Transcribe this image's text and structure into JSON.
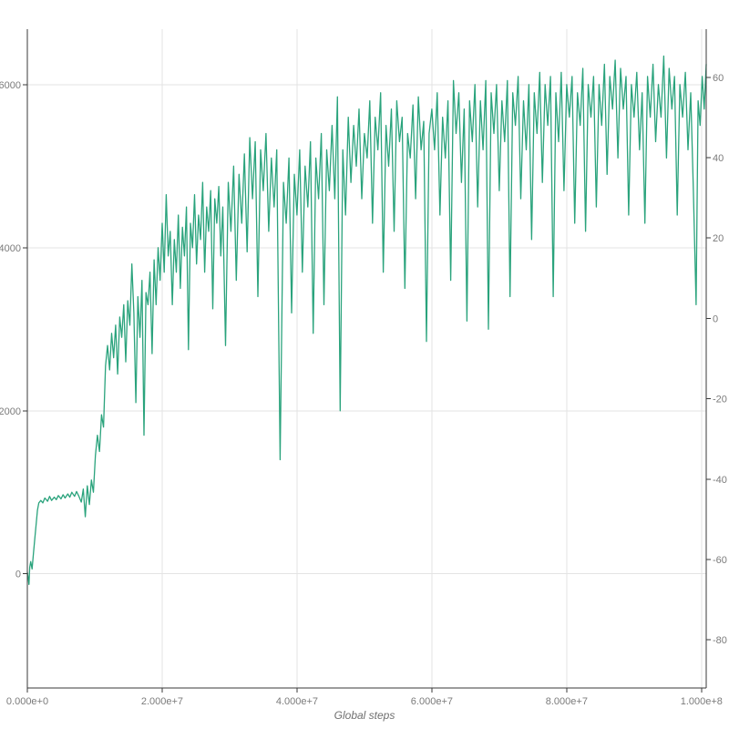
{
  "chart_data": {
    "type": "line",
    "title": "",
    "xlabel": "Global steps",
    "ylabel": "",
    "x_unit": "steps (x values stored in millions of steps)",
    "xlim_millions": [
      0,
      100.7
    ],
    "ylim_left": [
      -1400,
      6680
    ],
    "ylim_right": [
      -92,
      72
    ],
    "grid": true,
    "legend": "none",
    "colors": {
      "line": "#2aa37c",
      "grid": "#e3e3e3",
      "axis": "#3a3a3a",
      "tick_label": "#7b7b7b",
      "axis_title": "#6f6f6f",
      "background": "#ffffff"
    },
    "x_ticks": [
      {
        "v": 0,
        "label": "0.000e+0"
      },
      {
        "v": 20,
        "label": "2.000e+7"
      },
      {
        "v": 40,
        "label": "4.000e+7"
      },
      {
        "v": 60,
        "label": "6.000e+7"
      },
      {
        "v": 80,
        "label": "8.000e+7"
      },
      {
        "v": 100,
        "label": "1.000e+8"
      }
    ],
    "y_ticks_left": [
      {
        "v": 0,
        "label": "0"
      },
      {
        "v": 2000,
        "label": "2000"
      },
      {
        "v": 4000,
        "label": "4000"
      },
      {
        "v": 6000,
        "label": "6000"
      }
    ],
    "y_ticks_right": [
      {
        "v": 60,
        "label": "60"
      },
      {
        "v": 40,
        "label": "40"
      },
      {
        "v": 20,
        "label": "20"
      },
      {
        "v": 0,
        "label": "0"
      },
      {
        "v": -20,
        "label": "-20"
      },
      {
        "v": -40,
        "label": "-40"
      },
      {
        "v": -60,
        "label": "-60"
      },
      {
        "v": -80,
        "label": "-80"
      }
    ],
    "series": [
      {
        "name": "value",
        "axis": "left",
        "points": [
          [
            0,
            20
          ],
          [
            0.15,
            -60
          ],
          [
            0.25,
            -130
          ],
          [
            0.35,
            80
          ],
          [
            0.5,
            150
          ],
          [
            0.7,
            60
          ],
          [
            0.9,
            250
          ],
          [
            1.1,
            420
          ],
          [
            1.3,
            600
          ],
          [
            1.5,
            780
          ],
          [
            1.7,
            870
          ],
          [
            2,
            900
          ],
          [
            2.3,
            870
          ],
          [
            2.6,
            930
          ],
          [
            3,
            890
          ],
          [
            3.3,
            950
          ],
          [
            3.6,
            900
          ],
          [
            4,
            940
          ],
          [
            4.3,
            910
          ],
          [
            4.6,
            960
          ],
          [
            5,
            920
          ],
          [
            5.3,
            970
          ],
          [
            5.6,
            930
          ],
          [
            6,
            980
          ],
          [
            6.3,
            940
          ],
          [
            6.6,
            1000
          ],
          [
            7,
            950
          ],
          [
            7.3,
            1010
          ],
          [
            7.6,
            960
          ],
          [
            8,
            880
          ],
          [
            8.3,
            1040
          ],
          [
            8.6,
            700
          ],
          [
            8.9,
            1080
          ],
          [
            9.2,
            850
          ],
          [
            9.5,
            1150
          ],
          [
            9.8,
            1000
          ],
          [
            10.1,
            1450
          ],
          [
            10.4,
            1700
          ],
          [
            10.7,
            1500
          ],
          [
            11,
            1950
          ],
          [
            11.3,
            1800
          ],
          [
            11.6,
            2550
          ],
          [
            11.9,
            2800
          ],
          [
            12.2,
            2500
          ],
          [
            12.5,
            2950
          ],
          [
            12.8,
            2650
          ],
          [
            13.1,
            3050
          ],
          [
            13.4,
            2450
          ],
          [
            13.7,
            3150
          ],
          [
            14,
            2900
          ],
          [
            14.3,
            3300
          ],
          [
            14.6,
            2600
          ],
          [
            14.9,
            3350
          ],
          [
            15.2,
            3050
          ],
          [
            15.5,
            3800
          ],
          [
            15.8,
            3200
          ],
          [
            16.1,
            2100
          ],
          [
            16.4,
            3400
          ],
          [
            16.7,
            2900
          ],
          [
            17,
            3600
          ],
          [
            17.3,
            1700
          ],
          [
            17.6,
            3450
          ],
          [
            17.9,
            3300
          ],
          [
            18.2,
            3700
          ],
          [
            18.5,
            2700
          ],
          [
            18.8,
            3850
          ],
          [
            19.1,
            3300
          ],
          [
            19.4,
            4000
          ],
          [
            19.7,
            3600
          ],
          [
            20,
            4300
          ],
          [
            20.3,
            3700
          ],
          [
            20.6,
            4650
          ],
          [
            20.9,
            3900
          ],
          [
            21.2,
            4200
          ],
          [
            21.5,
            3300
          ],
          [
            21.8,
            4100
          ],
          [
            22.1,
            3700
          ],
          [
            22.4,
            4400
          ],
          [
            22.7,
            3500
          ],
          [
            23,
            4250
          ],
          [
            23.3,
            3900
          ],
          [
            23.6,
            4500
          ],
          [
            23.9,
            2750
          ],
          [
            24.2,
            4300
          ],
          [
            24.5,
            4000
          ],
          [
            24.8,
            4650
          ],
          [
            25.1,
            3800
          ],
          [
            25.4,
            4400
          ],
          [
            25.7,
            4100
          ],
          [
            26,
            4800
          ],
          [
            26.3,
            3700
          ],
          [
            26.6,
            4500
          ],
          [
            26.9,
            4200
          ],
          [
            27.2,
            4700
          ],
          [
            27.5,
            3250
          ],
          [
            27.8,
            4600
          ],
          [
            28.1,
            4300
          ],
          [
            28.4,
            4750
          ],
          [
            28.7,
            3900
          ],
          [
            29,
            4500
          ],
          [
            29.4,
            2800
          ],
          [
            29.8,
            4800
          ],
          [
            30.2,
            4200
          ],
          [
            30.6,
            5000
          ],
          [
            31,
            3600
          ],
          [
            31.4,
            4900
          ],
          [
            31.8,
            4300
          ],
          [
            32.2,
            5150
          ],
          [
            32.6,
            3950
          ],
          [
            33,
            5350
          ],
          [
            33.4,
            4600
          ],
          [
            33.8,
            5300
          ],
          [
            34.2,
            3400
          ],
          [
            34.6,
            5200
          ],
          [
            35,
            4700
          ],
          [
            35.4,
            5400
          ],
          [
            35.8,
            4200
          ],
          [
            36.2,
            5100
          ],
          [
            36.6,
            4500
          ],
          [
            37,
            5200
          ],
          [
            37.5,
            1400
          ],
          [
            38,
            4800
          ],
          [
            38.4,
            4300
          ],
          [
            38.8,
            5100
          ],
          [
            39.2,
            3200
          ],
          [
            39.6,
            4900
          ],
          [
            40,
            4400
          ],
          [
            40.4,
            5200
          ],
          [
            40.8,
            3700
          ],
          [
            41.2,
            5000
          ],
          [
            41.6,
            4500
          ],
          [
            42,
            5300
          ],
          [
            42.4,
            2950
          ],
          [
            42.8,
            5100
          ],
          [
            43.2,
            4600
          ],
          [
            43.6,
            5400
          ],
          [
            44,
            3300
          ],
          [
            44.4,
            5200
          ],
          [
            44.8,
            4700
          ],
          [
            45.2,
            5500
          ],
          [
            45.6,
            4600
          ],
          [
            46,
            5850
          ],
          [
            46.4,
            2000
          ],
          [
            46.8,
            5200
          ],
          [
            47.2,
            4400
          ],
          [
            47.6,
            5600
          ],
          [
            48,
            4800
          ],
          [
            48.4,
            5500
          ],
          [
            48.8,
            5000
          ],
          [
            49.2,
            5700
          ],
          [
            49.6,
            4600
          ],
          [
            50,
            5400
          ],
          [
            50.4,
            5100
          ],
          [
            50.8,
            5800
          ],
          [
            51.2,
            4300
          ],
          [
            51.6,
            5600
          ],
          [
            52,
            5200
          ],
          [
            52.4,
            5900
          ],
          [
            52.8,
            3700
          ],
          [
            53.2,
            5500
          ],
          [
            53.6,
            5000
          ],
          [
            54,
            5700
          ],
          [
            54.4,
            4200
          ],
          [
            54.8,
            5800
          ],
          [
            55.2,
            5300
          ],
          [
            55.6,
            5600
          ],
          [
            56,
            3500
          ],
          [
            56.4,
            5400
          ],
          [
            56.8,
            5100
          ],
          [
            57.2,
            5750
          ],
          [
            57.6,
            4600
          ],
          [
            58,
            5850
          ],
          [
            58.4,
            5200
          ],
          [
            58.8,
            5550
          ],
          [
            59.2,
            2850
          ],
          [
            59.6,
            5400
          ],
          [
            60,
            5700
          ],
          [
            60.4,
            5200
          ],
          [
            60.8,
            5900
          ],
          [
            61.2,
            4400
          ],
          [
            61.6,
            5600
          ],
          [
            62,
            5100
          ],
          [
            62.4,
            5800
          ],
          [
            62.8,
            3600
          ],
          [
            63.2,
            6050
          ],
          [
            63.6,
            5400
          ],
          [
            64,
            5900
          ],
          [
            64.4,
            4800
          ],
          [
            64.8,
            5700
          ],
          [
            65.2,
            3100
          ],
          [
            65.6,
            5800
          ],
          [
            66,
            5300
          ],
          [
            66.4,
            6000
          ],
          [
            66.8,
            4500
          ],
          [
            67.2,
            5800
          ],
          [
            67.6,
            5200
          ],
          [
            68,
            6050
          ],
          [
            68.4,
            3000
          ],
          [
            68.8,
            5900
          ],
          [
            69.2,
            5400
          ],
          [
            69.6,
            6000
          ],
          [
            70,
            4700
          ],
          [
            70.4,
            5800
          ],
          [
            70.8,
            5300
          ],
          [
            71.2,
            6050
          ],
          [
            71.6,
            3400
          ],
          [
            72,
            5900
          ],
          [
            72.4,
            5500
          ],
          [
            72.8,
            6100
          ],
          [
            73.2,
            4600
          ],
          [
            73.6,
            5800
          ],
          [
            74,
            5200
          ],
          [
            74.4,
            6000
          ],
          [
            74.8,
            4100
          ],
          [
            75.2,
            5900
          ],
          [
            75.6,
            5400
          ],
          [
            76,
            6150
          ],
          [
            76.4,
            4800
          ],
          [
            76.8,
            6000
          ],
          [
            77.2,
            5500
          ],
          [
            77.6,
            6100
          ],
          [
            78,
            3400
          ],
          [
            78.4,
            5900
          ],
          [
            78.8,
            5300
          ],
          [
            79.2,
            6150
          ],
          [
            79.6,
            4700
          ],
          [
            80,
            6000
          ],
          [
            80.4,
            5600
          ],
          [
            80.8,
            6100
          ],
          [
            81.2,
            4300
          ],
          [
            81.6,
            5900
          ],
          [
            82,
            5500
          ],
          [
            82.4,
            6200
          ],
          [
            82.8,
            4200
          ],
          [
            83.2,
            6000
          ],
          [
            83.6,
            5600
          ],
          [
            84,
            6100
          ],
          [
            84.4,
            4500
          ],
          [
            84.8,
            6000
          ],
          [
            85.2,
            5500
          ],
          [
            85.6,
            6250
          ],
          [
            86,
            4900
          ],
          [
            86.4,
            6100
          ],
          [
            86.8,
            5700
          ],
          [
            87.2,
            6300
          ],
          [
            87.6,
            5100
          ],
          [
            88,
            6200
          ],
          [
            88.4,
            5700
          ],
          [
            88.8,
            6100
          ],
          [
            89.2,
            4400
          ],
          [
            89.6,
            6000
          ],
          [
            90,
            5600
          ],
          [
            90.4,
            6150
          ],
          [
            90.8,
            5200
          ],
          [
            91.2,
            5900
          ],
          [
            91.6,
            4300
          ],
          [
            92,
            6100
          ],
          [
            92.4,
            5600
          ],
          [
            92.8,
            6250
          ],
          [
            93.2,
            5300
          ],
          [
            93.6,
            6000
          ],
          [
            94,
            5600
          ],
          [
            94.4,
            6350
          ],
          [
            94.8,
            5100
          ],
          [
            95.2,
            6200
          ],
          [
            95.6,
            5700
          ],
          [
            96,
            6100
          ],
          [
            96.4,
            4400
          ],
          [
            96.8,
            6000
          ],
          [
            97.2,
            5600
          ],
          [
            97.6,
            6150
          ],
          [
            98,
            5200
          ],
          [
            98.4,
            5900
          ],
          [
            98.8,
            4700
          ],
          [
            99.2,
            3300
          ],
          [
            99.5,
            5800
          ],
          [
            99.8,
            5500
          ],
          [
            100.1,
            6100
          ],
          [
            100.4,
            5700
          ],
          [
            100.7,
            6250
          ]
        ]
      }
    ]
  }
}
